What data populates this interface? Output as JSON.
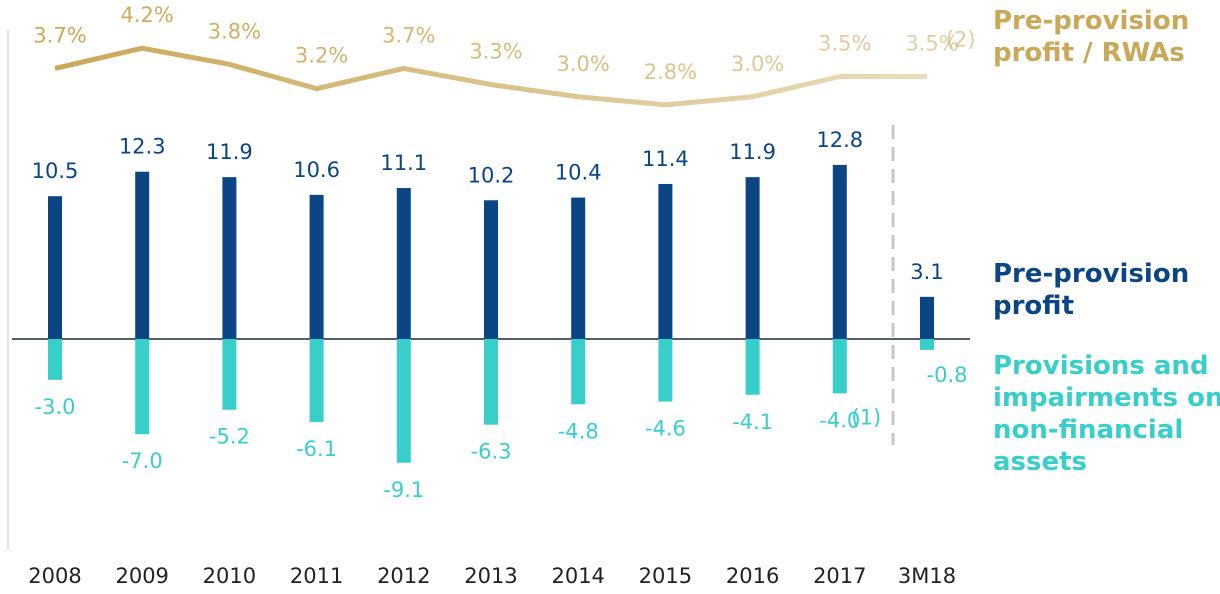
{
  "chart_data": {
    "type": "bar",
    "categories": [
      "2008",
      "2009",
      "2010",
      "2011",
      "2012",
      "2013",
      "2014",
      "2015",
      "2016",
      "2017",
      "3M18"
    ],
    "series": [
      {
        "name": "Pre-provision profit",
        "color": "#0b4584",
        "values": [
          10.5,
          12.3,
          11.9,
          10.6,
          11.1,
          10.2,
          10.4,
          11.4,
          11.9,
          12.8,
          3.1
        ]
      },
      {
        "name": "Provisions and impairments on non-financial assets",
        "color": "#38cfcb",
        "values": [
          -3.0,
          -7.0,
          -5.2,
          -6.1,
          -9.1,
          -6.3,
          -4.8,
          -4.6,
          -4.1,
          -4.0,
          -0.8
        ],
        "value_labels": [
          "-3.0",
          "-7.0",
          "-5.2",
          "-6.1",
          "-9.1",
          "-6.3",
          "-4.8",
          "-4.6",
          "-4.1",
          "-4.0",
          "-0.8"
        ]
      },
      {
        "name": "Pre-provision profit / RWAs",
        "color": "#c9a857",
        "type": "line",
        "axis": "y2",
        "values": [
          3.7,
          4.2,
          3.8,
          3.2,
          3.7,
          3.3,
          3.0,
          2.8,
          3.0,
          3.5,
          3.5
        ],
        "value_labels": [
          "3.7%",
          "4.2%",
          "3.8%",
          "3.2%",
          "3.7%",
          "3.3%",
          "3.0%",
          "2.8%",
          "3.0%",
          "3.5%",
          "3.5%"
        ]
      }
    ],
    "annotations": [
      "(1)",
      "(2)"
    ],
    "ylim": [
      -15,
      20
    ],
    "y2lim": [
      2.5,
      4.5
    ]
  }
}
